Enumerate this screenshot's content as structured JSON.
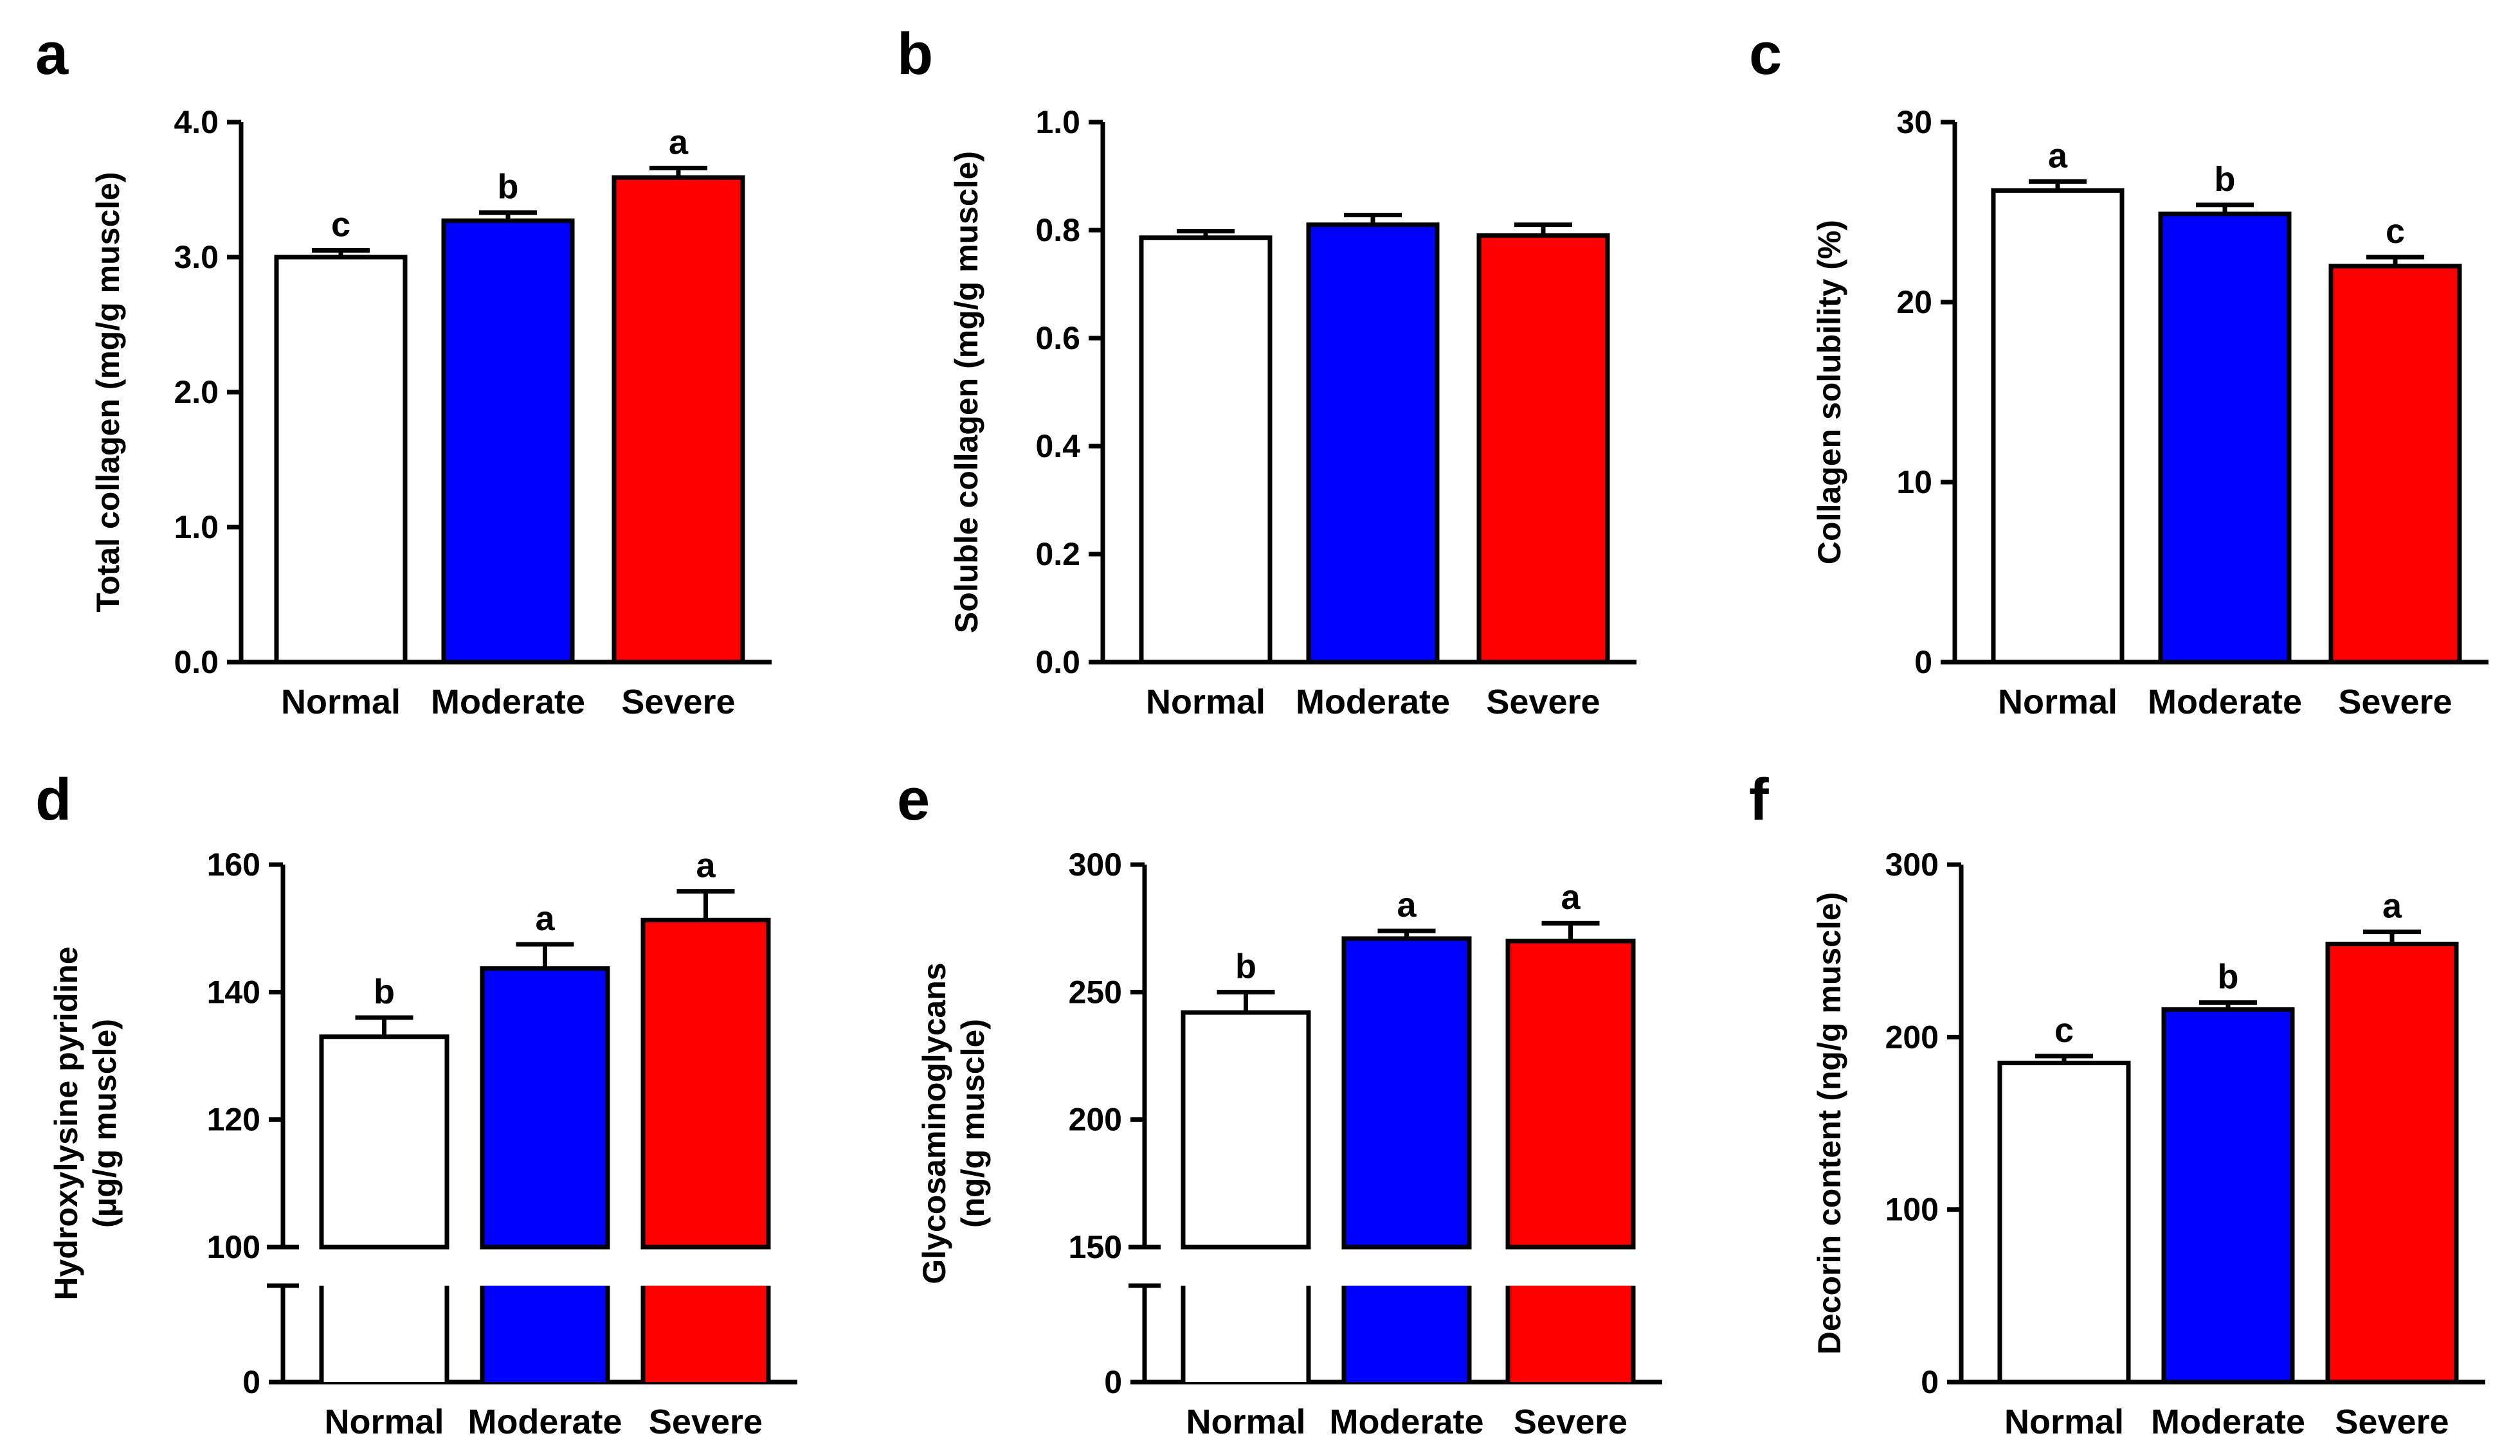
{
  "colors": {
    "Normal": "#ffffff",
    "Moderate": "#0000ff",
    "Severe": "#ff0000",
    "axis": "#000000"
  },
  "chart_data": [
    {
      "panel": "a",
      "type": "bar",
      "categories": [
        "Normal",
        "Moderate",
        "Severe"
      ],
      "values": [
        3.0,
        3.27,
        3.59
      ],
      "errors": [
        0.05,
        0.06,
        0.07
      ],
      "letters": [
        "c",
        "b",
        "a"
      ],
      "ylabel": [
        "Total collagen (mg/g muscle)"
      ],
      "ylim": [
        0,
        4
      ],
      "yticks": [
        0,
        1,
        2,
        3,
        4
      ],
      "ytick_labels": [
        "0.0",
        "1.0",
        "2.0",
        "3.0",
        "4.0"
      ]
    },
    {
      "panel": "b",
      "type": "bar",
      "categories": [
        "Normal",
        "Moderate",
        "Severe"
      ],
      "values": [
        0.786,
        0.81,
        0.79
      ],
      "errors": [
        0.012,
        0.018,
        0.02
      ],
      "letters": [
        "",
        "",
        ""
      ],
      "ylabel": [
        "Soluble collagen (mg/g muscle)"
      ],
      "ylim": [
        0,
        1
      ],
      "yticks": [
        0,
        0.2,
        0.4,
        0.6,
        0.8,
        1.0
      ],
      "ytick_labels": [
        "0.0",
        "0.2",
        "0.4",
        "0.6",
        "0.8",
        "1.0"
      ]
    },
    {
      "panel": "c",
      "type": "bar",
      "categories": [
        "Normal",
        "Moderate",
        "Severe"
      ],
      "values": [
        26.2,
        24.9,
        22.0
      ],
      "errors": [
        0.5,
        0.5,
        0.5
      ],
      "letters": [
        "a",
        "b",
        "c"
      ],
      "ylabel": [
        "Collagen solubility (%)"
      ],
      "ylim": [
        0,
        30
      ],
      "yticks": [
        0,
        10,
        20,
        30
      ],
      "ytick_labels": [
        "0",
        "10",
        "20",
        "30"
      ]
    },
    {
      "panel": "d",
      "type": "bar",
      "broken_axis": true,
      "categories": [
        "Normal",
        "Moderate",
        "Severe"
      ],
      "values": [
        133,
        143.7,
        151.3
      ],
      "errors": [
        3,
        3.8,
        4.5
      ],
      "letters": [
        "b",
        "a",
        "a"
      ],
      "ylabel": [
        "Hydroxylysine pyridine",
        "(μg/g muscle)"
      ],
      "ylim_upper": [
        100,
        160
      ],
      "yticks_upper": [
        100,
        120,
        140,
        160
      ],
      "ytick_labels_upper": [
        "100",
        "120",
        "140",
        "160"
      ],
      "ylim_lower": [
        0,
        100
      ],
      "yticks_lower": [
        0,
        100
      ],
      "ytick_labels_lower": [
        "0",
        "100"
      ]
    },
    {
      "panel": "e",
      "type": "bar",
      "broken_axis": true,
      "categories": [
        "Normal",
        "Moderate",
        "Severe"
      ],
      "values": [
        242,
        271,
        270
      ],
      "errors": [
        8,
        3,
        7
      ],
      "letters": [
        "b",
        "a",
        "a"
      ],
      "ylabel": [
        "Glycosaminoglycans",
        "(ng/g muscle)"
      ],
      "ylim_upper": [
        150,
        300
      ],
      "yticks_upper": [
        150,
        200,
        250,
        300
      ],
      "ytick_labels_upper": [
        "150",
        "200",
        "250",
        "300"
      ],
      "ylim_lower": [
        0,
        150
      ],
      "yticks_lower": [
        0,
        150
      ],
      "ytick_labels_lower": [
        "0",
        "150"
      ]
    },
    {
      "panel": "f",
      "type": "bar",
      "categories": [
        "Normal",
        "Moderate",
        "Severe"
      ],
      "values": [
        185,
        216,
        254
      ],
      "errors": [
        4,
        4,
        7
      ],
      "letters": [
        "c",
        "b",
        "a"
      ],
      "ylabel": [
        "Decorin content (ng/g muscle)"
      ],
      "ylim": [
        0,
        300
      ],
      "yticks": [
        0,
        100,
        200,
        300
      ],
      "ytick_labels": [
        "0",
        "100",
        "200",
        "300"
      ]
    }
  ]
}
